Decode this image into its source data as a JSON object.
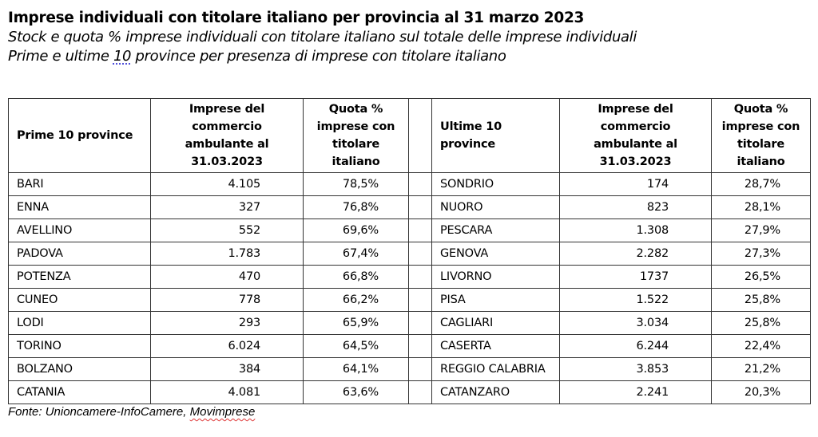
{
  "title": "Imprese individuali con titolare italiano per provincia al 31 marzo 2023",
  "subtitle_line1": "Stock e quota % imprese individuali con titolare italiano sul totale delle imprese individuali",
  "subtitle_line2": {
    "before": "Prime e ultime ",
    "number": "10",
    "after": " province per presenza di imprese con titolare italiano"
  },
  "table": {
    "headers_left": {
      "province": "Prime 10 province",
      "imprese": "Imprese del commercio ambulante al 31.03.2023",
      "quota": "Quota % imprese con titolare italiano"
    },
    "headers_right": {
      "province": "Ultime 10 province",
      "imprese": "Imprese del commercio ambulante al 31.03.2023",
      "quota": "Quota % imprese con titolare italiano"
    },
    "rows": [
      {
        "top_name": "BARI",
        "top_imprese": "4.105",
        "top_quota": "78,5%",
        "bottom_name": "SONDRIO",
        "bottom_imprese": "174",
        "bottom_quota": "28,7%"
      },
      {
        "top_name": "ENNA",
        "top_imprese": "327",
        "top_quota": "76,8%",
        "bottom_name": "NUORO",
        "bottom_imprese": "823",
        "bottom_quota": "28,1%"
      },
      {
        "top_name": "AVELLINO",
        "top_imprese": "552",
        "top_quota": "69,6%",
        "bottom_name": "PESCARA",
        "bottom_imprese": "1.308",
        "bottom_quota": "27,9%"
      },
      {
        "top_name": "PADOVA",
        "top_imprese": "1.783",
        "top_quota": "67,4%",
        "bottom_name": "GENOVA",
        "bottom_imprese": "2.282",
        "bottom_quota": "27,3%"
      },
      {
        "top_name": "POTENZA",
        "top_imprese": "470",
        "top_quota": "66,8%",
        "bottom_name": "LIVORNO",
        "bottom_imprese": "1737",
        "bottom_quota": "26,5%"
      },
      {
        "top_name": "CUNEO",
        "top_imprese": "778",
        "top_quota": "66,2%",
        "bottom_name": "PISA",
        "bottom_imprese": "1.522",
        "bottom_quota": "25,8%"
      },
      {
        "top_name": "LODI",
        "top_imprese": "293",
        "top_quota": "65,9%",
        "bottom_name": "CAGLIARI",
        "bottom_imprese": "3.034",
        "bottom_quota": "25,8%"
      },
      {
        "top_name": "TORINO",
        "top_imprese": "6.024",
        "top_quota": "64,5%",
        "bottom_name": "CASERTA",
        "bottom_imprese": "6.244",
        "bottom_quota": "22,4%"
      },
      {
        "top_name": "BOLZANO",
        "top_imprese": "384",
        "top_quota": "64,1%",
        "bottom_name": "REGGIO CALABRIA",
        "bottom_imprese": "3.853",
        "bottom_quota": "21,2%"
      },
      {
        "top_name": "CATANIA",
        "top_imprese": "4.081",
        "top_quota": "63,6%",
        "bottom_name": "CATANZARO",
        "bottom_imprese": "2.241",
        "bottom_quota": "20,3%"
      }
    ]
  },
  "source": {
    "prefix": "Fonte: Unioncamere-InfoCamere, ",
    "highlighted": "Movimprese"
  },
  "colors": {
    "text": "#000000",
    "border": "#333333",
    "spellcheck_underline": "#dd3333",
    "grammar_underline": "#3b3bd6"
  }
}
